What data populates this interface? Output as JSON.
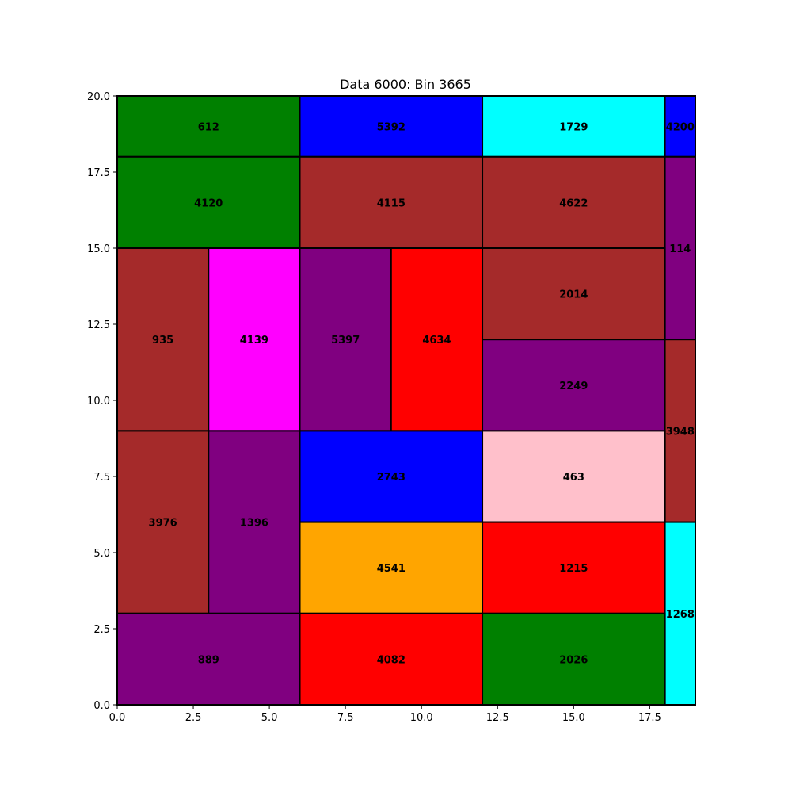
{
  "chart_data": {
    "type": "rectangle-packing",
    "title": "Data 6000: Bin 3665",
    "xlim": [
      0,
      19
    ],
    "ylim": [
      0,
      20
    ],
    "xticks": [
      0,
      2.5,
      5,
      7.5,
      10,
      12.5,
      15,
      17.5
    ],
    "xtick_labels": [
      "0.0",
      "2.5",
      "5.0",
      "7.5",
      "10.0",
      "12.5",
      "15.0",
      "17.5"
    ],
    "yticks": [
      0,
      2.5,
      5,
      7.5,
      10,
      12.5,
      15,
      17.5,
      20
    ],
    "ytick_labels": [
      "0.0",
      "2.5",
      "5.0",
      "7.5",
      "10.0",
      "12.5",
      "15.0",
      "17.5",
      "20.0"
    ],
    "grid": false,
    "rectangles": [
      {
        "label": "612",
        "x": 0,
        "y": 18,
        "w": 6,
        "h": 2,
        "color": "#008000"
      },
      {
        "label": "5392",
        "x": 6,
        "y": 18,
        "w": 6,
        "h": 2,
        "color": "#0000ff"
      },
      {
        "label": "1729",
        "x": 12,
        "y": 18,
        "w": 6,
        "h": 2,
        "color": "#00ffff"
      },
      {
        "label": "4200",
        "x": 18,
        "y": 18,
        "w": 1,
        "h": 2,
        "color": "#0000ff"
      },
      {
        "label": "4120",
        "x": 0,
        "y": 15,
        "w": 6,
        "h": 3,
        "color": "#008000"
      },
      {
        "label": "4115",
        "x": 6,
        "y": 15,
        "w": 6,
        "h": 3,
        "color": "#a52a2a"
      },
      {
        "label": "4622",
        "x": 12,
        "y": 15,
        "w": 6,
        "h": 3,
        "color": "#a52a2a"
      },
      {
        "label": "114",
        "x": 18,
        "y": 12,
        "w": 1,
        "h": 6,
        "color": "#800080"
      },
      {
        "label": "935",
        "x": 0,
        "y": 9,
        "w": 3,
        "h": 6,
        "color": "#a52a2a"
      },
      {
        "label": "4139",
        "x": 3,
        "y": 9,
        "w": 3,
        "h": 6,
        "color": "#ff00ff"
      },
      {
        "label": "5397",
        "x": 6,
        "y": 9,
        "w": 3,
        "h": 6,
        "color": "#800080"
      },
      {
        "label": "4634",
        "x": 9,
        "y": 9,
        "w": 3,
        "h": 6,
        "color": "#ff0000"
      },
      {
        "label": "2014",
        "x": 12,
        "y": 12,
        "w": 6,
        "h": 3,
        "color": "#a52a2a"
      },
      {
        "label": "2249",
        "x": 12,
        "y": 9,
        "w": 6,
        "h": 3,
        "color": "#800080"
      },
      {
        "label": "3948",
        "x": 18,
        "y": 6,
        "w": 1,
        "h": 6,
        "color": "#a52a2a"
      },
      {
        "label": "3976",
        "x": 0,
        "y": 3,
        "w": 3,
        "h": 6,
        "color": "#a52a2a"
      },
      {
        "label": "1396",
        "x": 3,
        "y": 3,
        "w": 3,
        "h": 6,
        "color": "#800080"
      },
      {
        "label": "2743",
        "x": 6,
        "y": 6,
        "w": 6,
        "h": 3,
        "color": "#0000ff"
      },
      {
        "label": "463",
        "x": 12,
        "y": 6,
        "w": 6,
        "h": 3,
        "color": "#ffc0cb"
      },
      {
        "label": "4541",
        "x": 6,
        "y": 3,
        "w": 6,
        "h": 3,
        "color": "#ffa500"
      },
      {
        "label": "1215",
        "x": 12,
        "y": 3,
        "w": 6,
        "h": 3,
        "color": "#ff0000"
      },
      {
        "label": "1268",
        "x": 18,
        "y": 0,
        "w": 1,
        "h": 6,
        "color": "#00ffff"
      },
      {
        "label": "889",
        "x": 0,
        "y": 0,
        "w": 6,
        "h": 3,
        "color": "#800080"
      },
      {
        "label": "4082",
        "x": 6,
        "y": 0,
        "w": 6,
        "h": 3,
        "color": "#ff0000"
      },
      {
        "label": "2026",
        "x": 12,
        "y": 0,
        "w": 6,
        "h": 3,
        "color": "#008000"
      }
    ]
  }
}
